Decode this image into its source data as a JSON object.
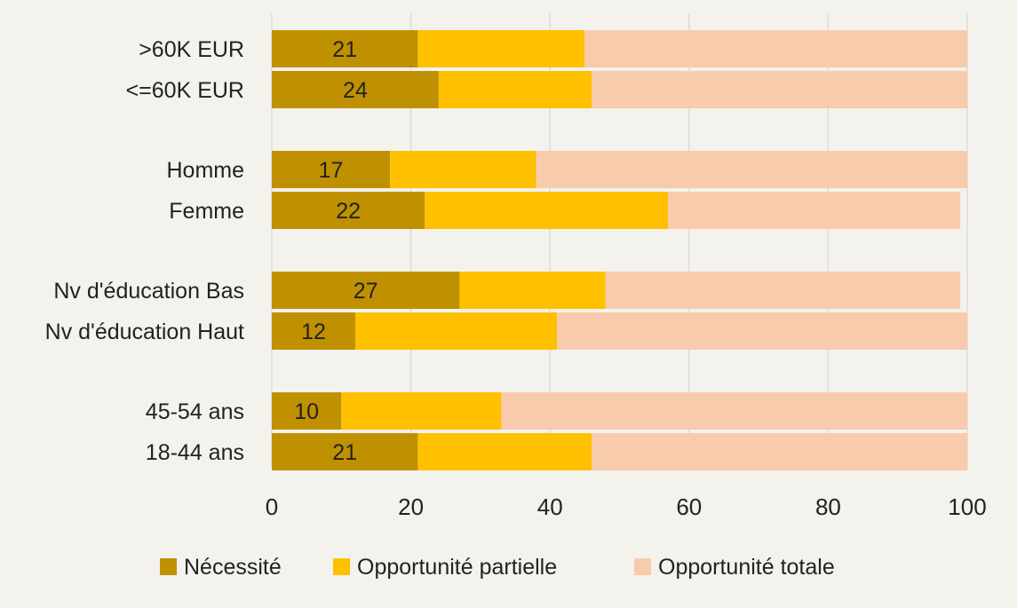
{
  "chart_data": {
    "type": "bar",
    "orientation": "horizontal",
    "stacked": true,
    "categories": [
      ">60K EUR",
      "<=60K EUR",
      "Homme",
      "Femme",
      "Nv d'éducation Bas",
      "Nv d'éducation Haut",
      "45-54 ans",
      "18-44 ans"
    ],
    "groups": [
      [
        ">60K EUR",
        "<=60K EUR"
      ],
      [
        "Homme",
        "Femme"
      ],
      [
        "Nv d'éducation Bas",
        "Nv d'éducation Haut"
      ],
      [
        "45-54 ans",
        "18-44 ans"
      ]
    ],
    "series": [
      {
        "name": "Nécessité",
        "color": "#bf9000",
        "values": [
          21,
          24,
          17,
          22,
          27,
          12,
          10,
          21
        ],
        "data_labels": [
          "21",
          "24",
          "17",
          "22",
          "27",
          "12",
          "10",
          "21"
        ]
      },
      {
        "name": "Opportunité partielle",
        "color": "#ffc000",
        "values": [
          24,
          22,
          21,
          35,
          21,
          29,
          23,
          25
        ]
      },
      {
        "name": "Opportunité totale",
        "color": "#f8cbad",
        "values": [
          55,
          54,
          62,
          42,
          51,
          59,
          67,
          54
        ]
      }
    ],
    "xlim": [
      0,
      100
    ],
    "xticks": [
      "0",
      "20",
      "40",
      "60",
      "80",
      "100"
    ],
    "grid": true,
    "legend_position": "bottom",
    "title": "",
    "xlabel": "",
    "ylabel": ""
  }
}
